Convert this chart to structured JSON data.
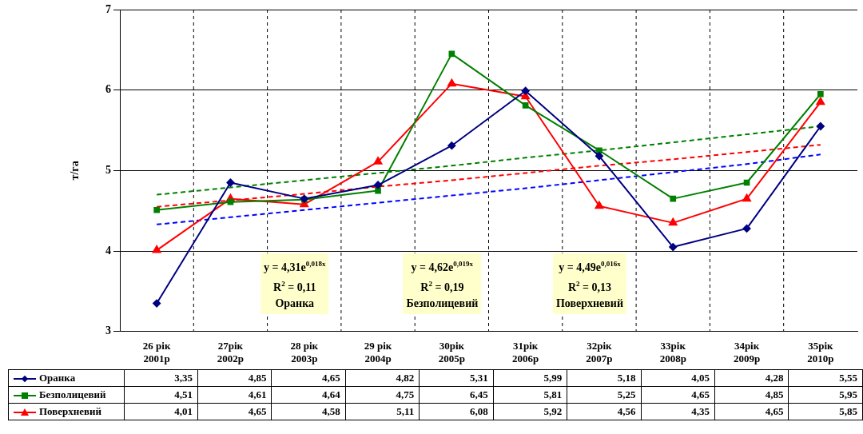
{
  "chart_data": {
    "type": "line",
    "ylabel": "т/га",
    "categories": [
      "26 рік\n2001р",
      "27рік\n2002р",
      "28 рік\n2003р",
      "29 рік\n2004р",
      "30рік\n2005р",
      "31рік\n2006р",
      "32рік\n2007р",
      "33рік\n2008р",
      "34рік\n2009р",
      "35рік\n2010р"
    ],
    "series": [
      {
        "name": "Оранка",
        "color": "#000080",
        "marker": "diamond",
        "values": [
          3.35,
          4.85,
          4.65,
          4.82,
          5.31,
          5.99,
          5.18,
          4.05,
          4.28,
          5.55
        ],
        "value_labels": [
          "3,35",
          "4,85",
          "4,65",
          "4,82",
          "5,31",
          "5,99",
          "5,18",
          "4,05",
          "4,28",
          "5,55"
        ]
      },
      {
        "name": "Безполицевий",
        "color": "#008000",
        "marker": "square",
        "values": [
          4.51,
          4.61,
          4.64,
          4.75,
          6.45,
          5.81,
          5.25,
          4.65,
          4.85,
          5.95
        ],
        "value_labels": [
          "4,51",
          "4,61",
          "4,64",
          "4,75",
          "6,45",
          "5,81",
          "5,25",
          "4,65",
          "4,85",
          "5,95"
        ]
      },
      {
        "name": "Поверхневий",
        "color": "#ff0000",
        "marker": "triangle",
        "values": [
          4.01,
          4.65,
          4.58,
          5.11,
          6.08,
          5.92,
          4.56,
          4.35,
          4.65,
          5.85
        ],
        "value_labels": [
          "4,01",
          "4,65",
          "4,58",
          "5,11",
          "6,08",
          "5,92",
          "4,56",
          "4,35",
          "4,65",
          "5,85"
        ]
      },
      {
        "type": "line",
        "color": "#0000ff",
        "line_style": "dashed",
        "marker": "none",
        "values": [
          4.33,
          4.42,
          4.51,
          4.6,
          4.69,
          4.78,
          4.88,
          4.98,
          5.08,
          5.2
        ]
      },
      {
        "type": "line",
        "color": "#008000",
        "line_style": "dashed",
        "marker": "none",
        "values": [
          4.7,
          4.79,
          4.88,
          4.97,
          5.06,
          5.16,
          5.25,
          5.35,
          5.45,
          5.55
        ]
      },
      {
        "type": "line",
        "color": "#ff0000",
        "line_style": "dashed",
        "marker": "none",
        "values": [
          4.55,
          4.63,
          4.71,
          4.8,
          4.88,
          4.97,
          5.06,
          5.14,
          5.23,
          5.32
        ]
      }
    ],
    "annotations": [
      "y = 4,31e$^{0,018x}$\nR$^{2}$ = 0,11\nОранка",
      "y = 4,62e$^{0,019x}$\nR$^{2}$ = 0,19\nБезполицевий",
      "y = 4,49e$^{0,016x}$\nR$^{2}$ = 0,13\nПоверхневий"
    ],
    "ylim": [
      3,
      7
    ],
    "yticks": [
      3,
      4,
      5,
      6,
      7
    ],
    "grid": true,
    "legend": "bottom"
  }
}
